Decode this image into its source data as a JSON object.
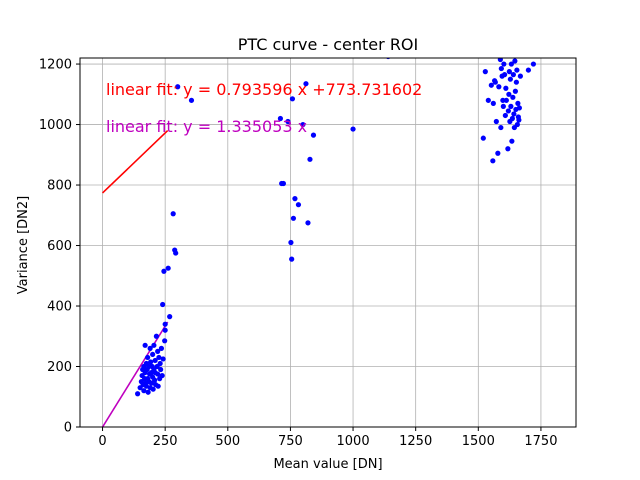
{
  "chart_data": {
    "type": "scatter",
    "title": "PTC curve - center ROI",
    "xlabel": "Mean value [DN]",
    "ylabel": "Variance [DN2]",
    "xlim": [
      -90,
      1890
    ],
    "ylim": [
      0,
      1220
    ],
    "xticks": [
      0,
      250,
      500,
      750,
      1000,
      1250,
      1500,
      1750
    ],
    "yticks": [
      0,
      200,
      400,
      600,
      800,
      1000,
      1200
    ],
    "grid": true,
    "colors": {
      "points": "#0000ff",
      "fit_offset": "#ff0000",
      "fit_origin": "#bf00bf"
    },
    "points": [
      [
        140,
        110
      ],
      [
        150,
        130
      ],
      [
        155,
        150
      ],
      [
        158,
        170
      ],
      [
        160,
        190
      ],
      [
        162,
        140
      ],
      [
        165,
        120
      ],
      [
        165,
        200
      ],
      [
        168,
        160
      ],
      [
        170,
        180
      ],
      [
        170,
        270
      ],
      [
        172,
        145
      ],
      [
        175,
        210
      ],
      [
        175,
        135
      ],
      [
        178,
        190
      ],
      [
        180,
        160
      ],
      [
        180,
        230
      ],
      [
        182,
        115
      ],
      [
        185,
        150
      ],
      [
        185,
        200
      ],
      [
        188,
        175
      ],
      [
        190,
        260
      ],
      [
        190,
        130
      ],
      [
        192,
        215
      ],
      [
        195,
        180
      ],
      [
        195,
        145
      ],
      [
        198,
        200
      ],
      [
        200,
        165
      ],
      [
        200,
        240
      ],
      [
        202,
        125
      ],
      [
        205,
        190
      ],
      [
        205,
        270
      ],
      [
        208,
        155
      ],
      [
        210,
        220
      ],
      [
        210,
        180
      ],
      [
        212,
        140
      ],
      [
        215,
        300
      ],
      [
        218,
        200
      ],
      [
        220,
        175
      ],
      [
        220,
        250
      ],
      [
        222,
        135
      ],
      [
        225,
        230
      ],
      [
        228,
        160
      ],
      [
        230,
        210
      ],
      [
        232,
        190
      ],
      [
        235,
        260
      ],
      [
        238,
        170
      ],
      [
        240,
        405
      ],
      [
        242,
        225
      ],
      [
        245,
        515
      ],
      [
        248,
        285
      ],
      [
        250,
        320
      ],
      [
        250,
        340
      ],
      [
        262,
        525
      ],
      [
        268,
        365
      ],
      [
        282,
        705
      ],
      [
        288,
        585
      ],
      [
        292,
        575
      ],
      [
        300,
        1125
      ],
      [
        355,
        1080
      ],
      [
        710,
        1020
      ],
      [
        715,
        805
      ],
      [
        722,
        805
      ],
      [
        740,
        1010
      ],
      [
        752,
        610
      ],
      [
        755,
        555
      ],
      [
        758,
        1085
      ],
      [
        762,
        690
      ],
      [
        768,
        755
      ],
      [
        782,
        735
      ],
      [
        800,
        1000
      ],
      [
        812,
        1135
      ],
      [
        820,
        675
      ],
      [
        828,
        885
      ],
      [
        842,
        965
      ],
      [
        1000,
        985
      ],
      [
        1140,
        1225
      ],
      [
        1520,
        955
      ],
      [
        1528,
        1175
      ],
      [
        1540,
        1080
      ],
      [
        1552,
        1130
      ],
      [
        1558,
        880
      ],
      [
        1560,
        1070
      ],
      [
        1565,
        1145
      ],
      [
        1568,
        1140
      ],
      [
        1572,
        1010
      ],
      [
        1578,
        905
      ],
      [
        1582,
        1125
      ],
      [
        1588,
        1215
      ],
      [
        1590,
        990
      ],
      [
        1592,
        1185
      ],
      [
        1595,
        1160
      ],
      [
        1598,
        1080
      ],
      [
        1600,
        1060
      ],
      [
        1602,
        1200
      ],
      [
        1605,
        1165
      ],
      [
        1608,
        1030
      ],
      [
        1610,
        1120
      ],
      [
        1612,
        1080
      ],
      [
        1615,
        1230
      ],
      [
        1618,
        920
      ],
      [
        1620,
        1045
      ],
      [
        1622,
        1100
      ],
      [
        1624,
        1175
      ],
      [
        1626,
        1010
      ],
      [
        1628,
        1150
      ],
      [
        1630,
        1060
      ],
      [
        1632,
        1200
      ],
      [
        1634,
        945
      ],
      [
        1636,
        1020
      ],
      [
        1638,
        1090
      ],
      [
        1640,
        1165
      ],
      [
        1642,
        1035
      ],
      [
        1644,
        990
      ],
      [
        1646,
        1210
      ],
      [
        1648,
        1110
      ],
      [
        1650,
        1050
      ],
      [
        1652,
        1140
      ],
      [
        1654,
        1180
      ],
      [
        1656,
        1000
      ],
      [
        1658,
        1070
      ],
      [
        1660,
        1025
      ],
      [
        1662,
        1015
      ],
      [
        1664,
        1055
      ],
      [
        1668,
        1160
      ],
      [
        1700,
        1180
      ],
      [
        1720,
        1200
      ]
    ],
    "fits": [
      {
        "label": "linear fit: y = 0.793596 x +773.731602",
        "slope": 0.793596,
        "intercept": 773.731602,
        "x_range": [
          0,
          260
        ],
        "color": "#ff0000"
      },
      {
        "label": "linear fit: y = 1.335053 x",
        "slope": 1.335053,
        "intercept": 0,
        "x_range": [
          0,
          260
        ],
        "color": "#bf00bf"
      }
    ]
  }
}
